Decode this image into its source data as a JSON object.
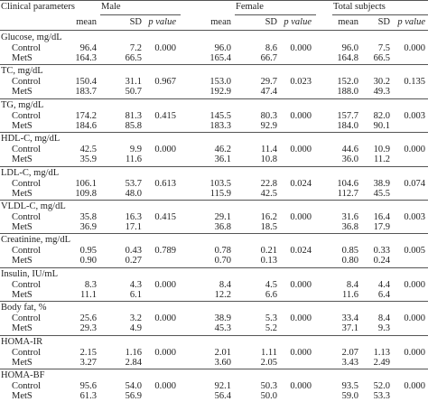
{
  "table": {
    "header": [
      "Clinical parameters",
      "Male",
      "Female",
      "Total subjects"
    ],
    "subheader": [
      "mean",
      "SD",
      "p value",
      "mean",
      "SD",
      "p value",
      "mean",
      "SD",
      "p value"
    ],
    "groups": [
      {
        "label": "Glucose, mg/dL",
        "control": {
          "label": "Control",
          "cells": [
            "96.4",
            "7.2",
            "0.000",
            "96.0",
            "8.6",
            "0.000",
            "96.0",
            "7.5",
            "0.000"
          ]
        },
        "mets": {
          "label": "MetS",
          "cells": [
            "164.3",
            "66.5",
            "165.4",
            "66.7",
            "164.8",
            "66.5"
          ]
        }
      },
      {
        "label": "TC, mg/dL",
        "control": {
          "label": "Control",
          "cells": [
            "150.4",
            "31.1",
            "0.967",
            "153.0",
            "29.7",
            "0.023",
            "152.0",
            "30.2",
            "0.135"
          ]
        },
        "mets": {
          "label": "MetS",
          "cells": [
            "183.7",
            "50.7",
            "192.9",
            "47.4",
            "188.0",
            "49.3"
          ]
        }
      },
      {
        "label": "TG, mg/dL",
        "control": {
          "label": "Control",
          "cells": [
            "174.2",
            "81.3",
            "0.415",
            "145.5",
            "80.3",
            "0.000",
            "157.7",
            "82.0",
            "0.003"
          ]
        },
        "mets": {
          "label": "MetS",
          "cells": [
            "184.6",
            "85.8",
            "183.3",
            "92.9",
            "184.0",
            "90.1"
          ]
        }
      },
      {
        "label": "HDL-C, mg/dL",
        "control": {
          "label": "Control",
          "cells": [
            "42.5",
            "9.9",
            "0.000",
            "46.2",
            "11.4",
            "0.000",
            "44.6",
            "10.9",
            "0.000"
          ]
        },
        "mets": {
          "label": "MetS",
          "cells": [
            "35.9",
            "11.6",
            "36.1",
            "10.8",
            "36.0",
            "11.2"
          ]
        }
      },
      {
        "label": "LDL-C, mg/dL",
        "control": {
          "label": "Control",
          "cells": [
            "106.1",
            "53.7",
            "0.613",
            "103.5",
            "22.8",
            "0.024",
            "104.6",
            "38.9",
            "0.074"
          ]
        },
        "mets": {
          "label": "MetS",
          "cells": [
            "109.8",
            "48.0",
            "115.9",
            "42.5",
            "112.7",
            "45.5"
          ]
        }
      },
      {
        "label": "VLDL-C, mg/dL",
        "control": {
          "label": "Control",
          "cells": [
            "35.8",
            "16.3",
            "0.415",
            "29.1",
            "16.2",
            "0.000",
            "31.6",
            "16.4",
            "0.003"
          ]
        },
        "mets": {
          "label": "MetS",
          "cells": [
            "36.9",
            "17.1",
            "36.8",
            "18.5",
            "36.8",
            "17.9"
          ]
        }
      },
      {
        "label": "Creatinine, mg/dL",
        "control": {
          "label": "Control",
          "cells": [
            "0.95",
            "0.43",
            "0.789",
            "0.78",
            "0.21",
            "0.024",
            "0.85",
            "0.33",
            "0.005"
          ]
        },
        "mets": {
          "label": "MetS",
          "cells": [
            "0.90",
            "0.27",
            "0.70",
            "0.13",
            "0.80",
            "0.24"
          ]
        }
      },
      {
        "label": "Insulin, IU/mL",
        "control": {
          "label": "Control",
          "cells": [
            "8.3",
            "4.3",
            "0.000",
            "8.4",
            "4.5",
            "0.000",
            "8.4",
            "4.4",
            "0.000"
          ]
        },
        "mets": {
          "label": "MetS",
          "cells": [
            "11.1",
            "6.1",
            "12.2",
            "6.6",
            "11.6",
            "6.4"
          ]
        }
      },
      {
        "label": "Body fat, %",
        "control": {
          "label": "Control",
          "cells": [
            "25.6",
            "3.2",
            "0.000",
            "38.9",
            "5.3",
            "0.000",
            "33.4",
            "8.4",
            "0.000"
          ]
        },
        "mets": {
          "label": "MetS",
          "cells": [
            "29.3",
            "4.9",
            "45.3",
            "5.2",
            "37.1",
            "9.3"
          ]
        }
      },
      {
        "label": "HOMA-IR",
        "control": {
          "label": "Control",
          "cells": [
            "2.15",
            "1.16",
            "0.000",
            "2.01",
            "1.11",
            "0.000",
            "2.07",
            "1.13",
            "0.000"
          ]
        },
        "mets": {
          "label": "MetS",
          "cells": [
            "3.27",
            "2.84",
            "3.60",
            "2.05",
            "3.43",
            "2.49"
          ]
        }
      },
      {
        "label": "HOMA-BF",
        "control": {
          "label": "Control",
          "cells": [
            "95.6",
            "54.0",
            "0.000",
            "92.1",
            "50.3",
            "0.000",
            "93.5",
            "52.0",
            "0.000"
          ]
        },
        "mets": {
          "label": "MetS",
          "cells": [
            "61.3",
            "56.9",
            "56.4",
            "50.0",
            "59.0",
            "53.3"
          ]
        }
      }
    ]
  }
}
